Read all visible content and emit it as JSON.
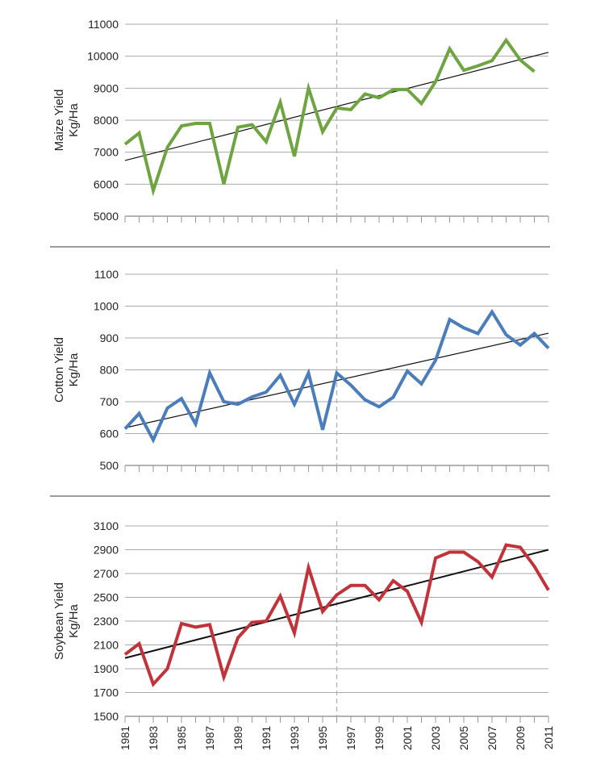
{
  "chart_data": [
    {
      "type": "line",
      "ylabel": [
        "Maize Yield",
        "Kg/Ha"
      ],
      "ylim": [
        5000,
        11000
      ],
      "yticks": [
        "5000",
        "6000",
        "7000",
        "8000",
        "9000",
        "10000",
        "11000"
      ],
      "x": [
        1981,
        1982,
        1983,
        1984,
        1985,
        1986,
        1987,
        1988,
        1989,
        1990,
        1991,
        1992,
        1993,
        1994,
        1995,
        1996,
        1997,
        1998,
        1999,
        2000,
        2001,
        2002,
        2003,
        2004,
        2005,
        2006,
        2007,
        2008,
        2009,
        2010
      ],
      "values": [
        7250,
        7600,
        5800,
        7150,
        7820,
        7900,
        7900,
        6000,
        7780,
        7860,
        7330,
        8560,
        6870,
        9000,
        7640,
        8380,
        8330,
        8820,
        8700,
        8950,
        8960,
        8520,
        9200,
        10230,
        9560,
        9700,
        9860,
        10500,
        9880,
        9520
      ],
      "trend": [
        [
          1981,
          6740
        ],
        [
          2011,
          10120
        ]
      ],
      "color": "#6fa443",
      "trend_color": "#111111",
      "vline_x": 1996
    },
    {
      "type": "line",
      "ylabel": [
        "Cotton Yield",
        "Kg/Ha"
      ],
      "ylim": [
        500,
        1100
      ],
      "yticks": [
        "500",
        "600",
        "700",
        "800",
        "900",
        "1000",
        "1100"
      ],
      "x": [
        1981,
        1982,
        1983,
        1984,
        1985,
        1986,
        1987,
        1988,
        1989,
        1990,
        1991,
        1992,
        1993,
        1994,
        1995,
        1996,
        1997,
        1998,
        1999,
        2000,
        2001,
        2002,
        2003,
        2004,
        2005,
        2006,
        2007,
        2008,
        2009,
        2010,
        2011
      ],
      "values": [
        615,
        663,
        580,
        680,
        710,
        630,
        790,
        700,
        692,
        715,
        730,
        783,
        692,
        790,
        612,
        790,
        752,
        706,
        684,
        714,
        796,
        756,
        830,
        958,
        932,
        914,
        982,
        910,
        878,
        914,
        868
      ],
      "trend": [
        [
          1981,
          618
        ],
        [
          2011,
          915
        ]
      ],
      "color": "#4a7dba",
      "trend_color": "#111111",
      "vline_x": 1996
    },
    {
      "type": "line",
      "ylabel": [
        "Soybean Yield",
        "Kg/Ha"
      ],
      "ylim": [
        1500,
        3100
      ],
      "yticks": [
        "1500",
        "1700",
        "1900",
        "2100",
        "2300",
        "2500",
        "2700",
        "2900",
        "3100"
      ],
      "x": [
        1981,
        1982,
        1983,
        1984,
        1985,
        1986,
        1987,
        1988,
        1989,
        1990,
        1991,
        1992,
        1993,
        1994,
        1995,
        1996,
        1997,
        1998,
        1999,
        2000,
        2001,
        2002,
        2003,
        2004,
        2005,
        2006,
        2007,
        2008,
        2009,
        2010,
        2011
      ],
      "values": [
        2020,
        2110,
        1770,
        1900,
        2280,
        2250,
        2270,
        1830,
        2160,
        2290,
        2300,
        2510,
        2200,
        2750,
        2380,
        2520,
        2600,
        2600,
        2480,
        2640,
        2550,
        2290,
        2830,
        2880,
        2880,
        2800,
        2670,
        2940,
        2920,
        2760,
        2560
      ],
      "trend": [
        [
          1981,
          1990
        ],
        [
          2011,
          2900
        ]
      ],
      "color": "#c0333b",
      "trend_color": "#111111",
      "vline_x": 1996
    }
  ],
  "x_axis": {
    "range": [
      1981,
      2011
    ],
    "tick_labels": [
      "1981",
      "1983",
      "1985",
      "1987",
      "1989",
      "1991",
      "1993",
      "1995",
      "1997",
      "1999",
      "2001",
      "2003",
      "2005",
      "2007",
      "2009",
      "2011"
    ]
  }
}
